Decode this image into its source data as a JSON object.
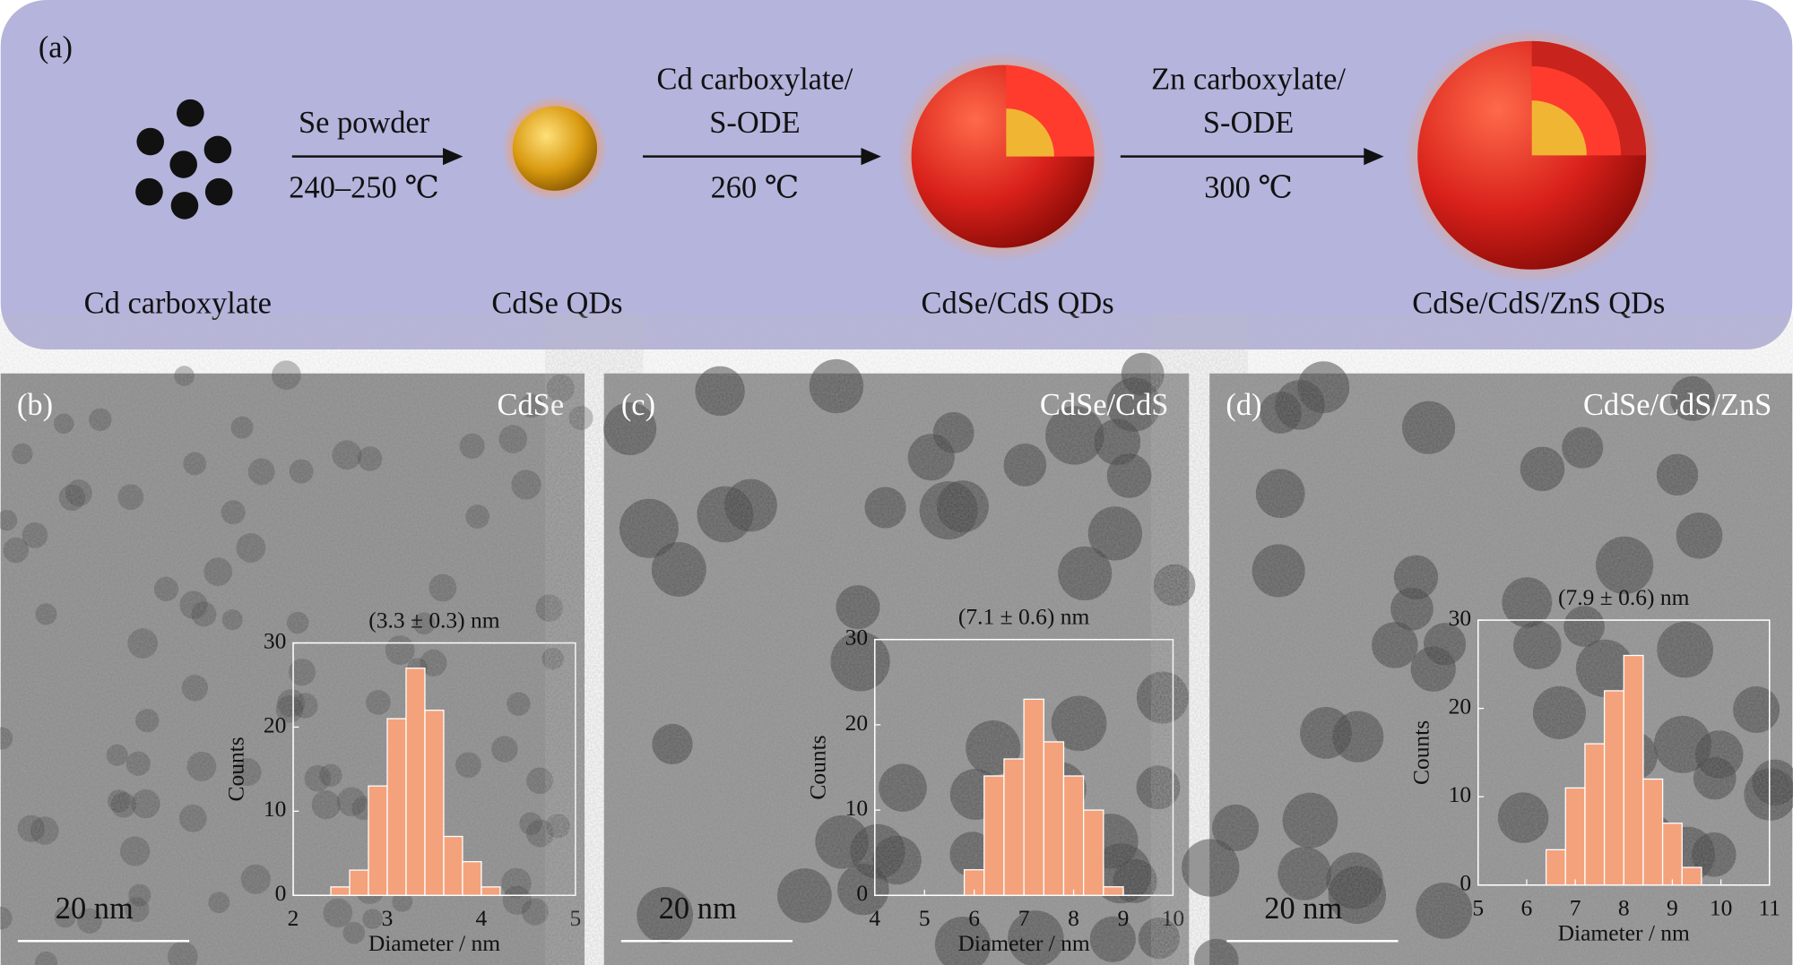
{
  "schematic": {
    "panel": "(a)",
    "precursor": "Cd carboxylate",
    "step1": {
      "reagent": "Se powder",
      "temperature": "240–250 ℃"
    },
    "product1": "CdSe QDs",
    "step2": {
      "reagent_line1": "Cd carboxylate/",
      "reagent_line2": "S-ODE",
      "temperature": "260 ℃"
    },
    "product2": "CdSe/CdS QDs",
    "step3": {
      "reagent_line1": "Zn carboxylate/",
      "reagent_line2": "S-ODE",
      "temperature": "300 ℃"
    },
    "product3": "CdSe/CdS/ZnS QDs"
  },
  "chart_data": [
    {
      "type": "histogram",
      "panel": "(b)",
      "sample": "CdSe",
      "scale_bar": "20 nm",
      "annotation": "(3.3 ± 0.3) nm",
      "x_label": "Diameter / nm",
      "y_label": "Counts",
      "color": "#f3a27c",
      "bins": [
        2.4,
        2.6,
        2.8,
        3.0,
        3.2,
        3.4,
        3.6,
        3.8,
        4.0,
        4.2
      ],
      "values": [
        1,
        3,
        13,
        21,
        27,
        22,
        7,
        4,
        1
      ],
      "xlim": [
        2,
        5
      ],
      "xticks": [
        2,
        3,
        4,
        5
      ],
      "ylim": [
        0,
        30
      ],
      "yticks": [
        0,
        10,
        20,
        30
      ]
    },
    {
      "type": "histogram",
      "panel": "(c)",
      "sample": "CdSe/CdS",
      "scale_bar": "20 nm",
      "annotation": "(7.1 ± 0.6) nm",
      "x_label": "Diameter / nm",
      "y_label": "Counts",
      "color": "#f3a27c",
      "bins": [
        5.8,
        6.2,
        6.6,
        7.0,
        7.4,
        7.8,
        8.2,
        8.6,
        9.0
      ],
      "values": [
        3,
        14,
        16,
        23,
        18,
        14,
        10,
        1
      ],
      "xlim": [
        4,
        10
      ],
      "xticks": [
        4,
        5,
        6,
        7,
        8,
        9,
        10
      ],
      "ylim": [
        0,
        30
      ],
      "yticks": [
        0,
        10,
        20,
        30
      ]
    },
    {
      "type": "histogram",
      "panel": "(d)",
      "sample": "CdSe/CdS/ZnS",
      "scale_bar": "20 nm",
      "annotation": "(7.9 ± 0.6) nm",
      "x_label": "Diameter / nm",
      "y_label": "Counts",
      "color": "#f3a27c",
      "bins": [
        6.4,
        6.8,
        7.2,
        7.6,
        8.0,
        8.4,
        8.8,
        9.2,
        9.6
      ],
      "values": [
        4,
        11,
        16,
        22,
        26,
        12,
        7,
        2
      ],
      "xlim": [
        5,
        11
      ],
      "xticks": [
        5,
        6,
        7,
        8,
        9,
        10,
        11
      ],
      "ylim": [
        0,
        30
      ],
      "yticks": [
        0,
        10,
        20,
        30
      ]
    }
  ]
}
